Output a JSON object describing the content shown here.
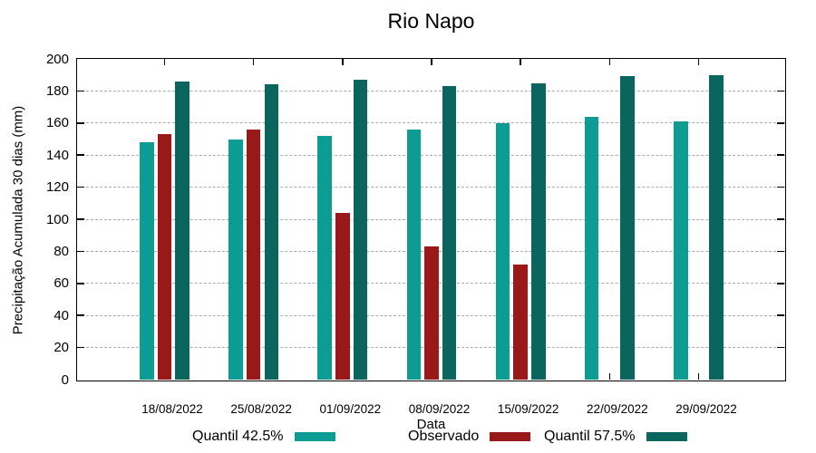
{
  "chart_data": {
    "type": "bar",
    "title": "Rio Napo",
    "xlabel": "Data",
    "ylabel": "Precipitação Acumulada 30 dias (mm)",
    "categories": [
      "18/08/2022",
      "25/08/2022",
      "01/09/2022",
      "08/09/2022",
      "15/09/2022",
      "22/09/2022",
      "29/09/2022"
    ],
    "series": [
      {
        "name": "Quantil 42.5%",
        "color": "#0d9c94",
        "values": [
          148,
          150,
          152,
          156,
          160,
          164,
          161
        ]
      },
      {
        "name": "Observado",
        "color": "#991818",
        "values": [
          153,
          156,
          104,
          83,
          72,
          null,
          null
        ]
      },
      {
        "name": "Quantil 57.5%",
        "color": "#0a655f",
        "values": [
          186,
          184,
          187,
          183,
          185,
          189,
          190
        ]
      }
    ],
    "ylim": [
      0,
      200
    ],
    "ytick_step": 20,
    "grid": "horizontal-dashed",
    "grid_color": "#aaaaaa",
    "axis_color": "#000000",
    "background_color": "#ffffff",
    "legend_position": "bottom"
  }
}
